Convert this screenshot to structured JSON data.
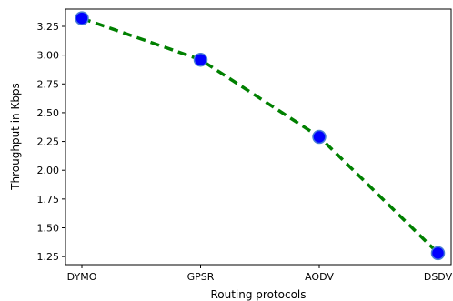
{
  "chart_data": {
    "type": "line",
    "categories": [
      "DYMO",
      "GPSR",
      "AODV",
      "DSDV"
    ],
    "values": [
      3.32,
      2.96,
      2.29,
      1.28
    ],
    "title": "",
    "xlabel": "Routing protocols",
    "ylabel": "Throughput in Kbps",
    "ylim": [
      1.18,
      3.4
    ],
    "yticks": [
      "1.25",
      "1.50",
      "1.75",
      "2.00",
      "2.25",
      "2.50",
      "2.75",
      "3.00",
      "3.25"
    ],
    "grid": false,
    "line_color": "#008000",
    "line_style": "dashed",
    "marker_face_color": "#0000ff",
    "marker_edge_color": "#4a7fd6"
  }
}
